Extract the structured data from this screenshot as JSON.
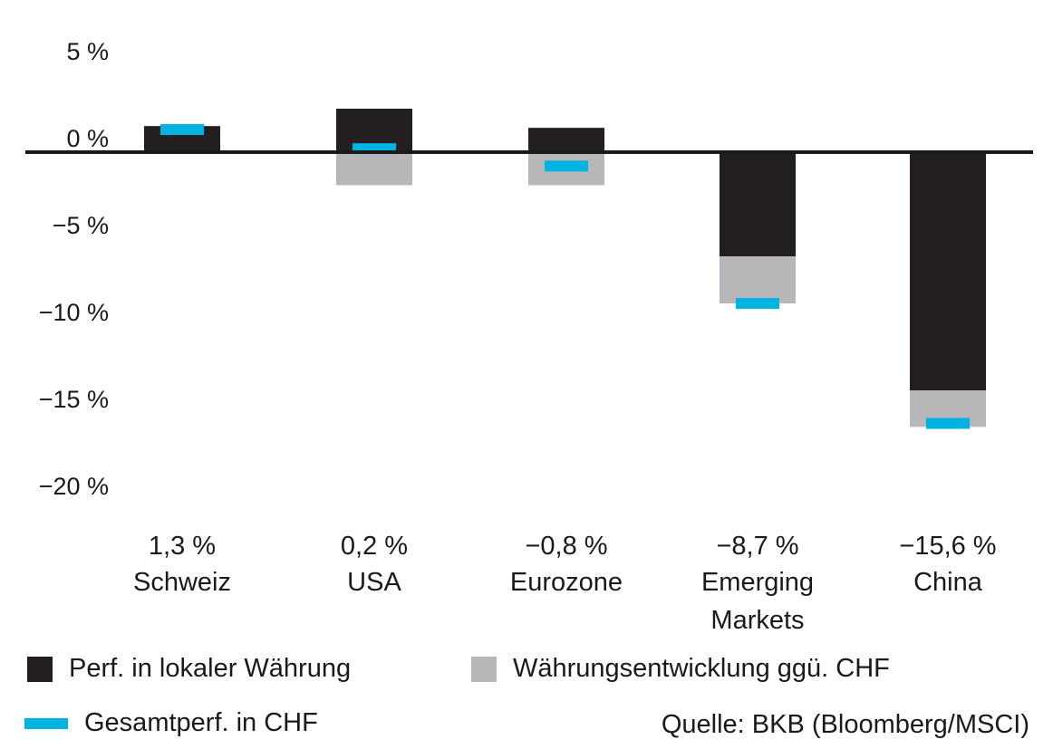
{
  "colors": {
    "local": "#231f20",
    "currency": "#b7b7b9",
    "total": "#00b3e3",
    "axis": "#1a1a1a"
  },
  "chart_data": {
    "type": "bar",
    "categories": [
      {
        "lines": [
          "Schweiz"
        ],
        "total_label": "1,3 %"
      },
      {
        "lines": [
          "USA"
        ],
        "total_label": "0,2 %"
      },
      {
        "lines": [
          "Eurozone"
        ],
        "total_label": "−0,8 %"
      },
      {
        "lines": [
          "Emerging",
          "Markets"
        ],
        "total_label": "−8,7 %"
      },
      {
        "lines": [
          "China"
        ],
        "total_label": "−15,6 %"
      }
    ],
    "series": [
      {
        "name": "Perf. in lokaler Währung",
        "values": [
          1.5,
          2.5,
          1.4,
          -6.0,
          -13.7
        ]
      },
      {
        "name": "Währungsentwicklung ggü. CHF",
        "values": [
          0.0,
          -1.9,
          -1.9,
          -2.7,
          -2.1
        ]
      },
      {
        "name": "Gesamtperf. in CHF",
        "values": [
          1.3,
          0.2,
          -0.8,
          -8.7,
          -15.6
        ]
      }
    ],
    "ylim": [
      -20,
      5
    ],
    "yticks": [
      {
        "value": 5,
        "label": "5 %"
      },
      {
        "value": 0,
        "label": "0 %"
      },
      {
        "value": -5,
        "label": "−5 %"
      },
      {
        "value": -10,
        "label": "−10 %"
      },
      {
        "value": -15,
        "label": "−15 %"
      },
      {
        "value": -20,
        "label": "−20 %"
      }
    ],
    "grid": false,
    "legend_position": "bottom"
  },
  "legend": {
    "local": "Perf. in lokaler Währung",
    "currency": "Währungsentwicklung ggü. CHF",
    "total": "Gesamtperf. in CHF"
  },
  "source": "Quelle: BKB (Bloomberg/MSCI)"
}
